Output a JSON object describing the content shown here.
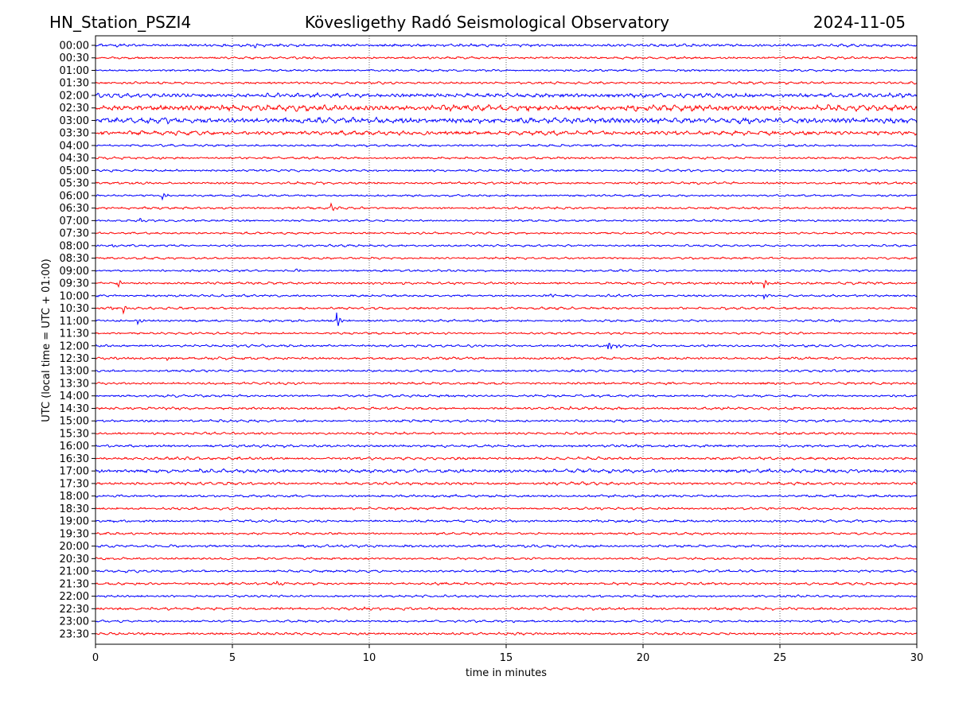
{
  "chart_data": {
    "type": "line",
    "subtype": "helicorder",
    "title_left": "HN_Station_PSZI4",
    "title_center": "Kövesligethy Radó Seismological Observatory",
    "title_right": "2024-11-05",
    "xlabel": "time in minutes",
    "ylabel": "UTC (local time = UTC + 01:00)",
    "xlim": [
      0,
      30
    ],
    "xticks": [
      0,
      5,
      10,
      15,
      20,
      25,
      30
    ],
    "grid": "vertical dotted at 5-minute ticks",
    "colors": [
      "#0000ff",
      "#ff0000"
    ],
    "rows": [
      "00:00",
      "00:30",
      "01:00",
      "01:30",
      "02:00",
      "02:30",
      "03:00",
      "03:30",
      "04:00",
      "04:30",
      "05:00",
      "05:30",
      "06:00",
      "06:30",
      "07:00",
      "07:30",
      "08:00",
      "08:30",
      "09:00",
      "09:30",
      "10:00",
      "10:30",
      "11:00",
      "11:30",
      "12:00",
      "12:30",
      "13:00",
      "13:30",
      "14:00",
      "14:30",
      "15:00",
      "15:30",
      "16:00",
      "16:30",
      "17:00",
      "17:30",
      "18:00",
      "18:30",
      "19:00",
      "19:30",
      "20:00",
      "20:30",
      "21:00",
      "21:30",
      "22:00",
      "22:30",
      "23:00",
      "23:30"
    ],
    "noise_level": [
      2,
      1.6,
      1.5,
      1.7,
      3,
      4,
      4,
      3,
      1.6,
      1.6,
      1.6,
      1.6,
      1.5,
      1.6,
      1.5,
      1.5,
      1.5,
      1.5,
      1.5,
      1.7,
      1.6,
      1.7,
      1.6,
      1.5,
      1.7,
      1.8,
      1.6,
      1.7,
      1.7,
      1.8,
      1.7,
      1.7,
      1.8,
      2,
      2.6,
      2,
      1.7,
      1.7,
      1.7,
      1.6,
      1.8,
      1.6,
      1.7,
      1.8,
      1.6,
      1.9,
      1.6,
      1.7
    ],
    "events": [
      {
        "row": 0,
        "minute": 5.8,
        "amp": 4
      },
      {
        "row": 10,
        "minute": 15.0,
        "amp": 3
      },
      {
        "row": 11,
        "minute": 28.5,
        "amp": 3
      },
      {
        "row": 12,
        "minute": 2.4,
        "amp": 7
      },
      {
        "row": 13,
        "minute": 8.6,
        "amp": 6
      },
      {
        "row": 14,
        "minute": 1.6,
        "amp": 4
      },
      {
        "row": 16,
        "minute": 0.6,
        "amp": 3
      },
      {
        "row": 18,
        "minute": 7.3,
        "amp": 3
      },
      {
        "row": 19,
        "minute": 0.8,
        "amp": 7
      },
      {
        "row": 19,
        "minute": 23.9,
        "amp": 4
      },
      {
        "row": 19,
        "minute": 24.4,
        "amp": 8
      },
      {
        "row": 20,
        "minute": 16.6,
        "amp": 4
      },
      {
        "row": 20,
        "minute": 24.4,
        "amp": 5
      },
      {
        "row": 21,
        "minute": 0.5,
        "amp": 4
      },
      {
        "row": 21,
        "minute": 1.0,
        "amp": 7
      },
      {
        "row": 22,
        "minute": 1.5,
        "amp": 6
      },
      {
        "row": 22,
        "minute": 8.8,
        "amp": 13
      },
      {
        "row": 24,
        "minute": 18.7,
        "amp": 9
      },
      {
        "row": 24,
        "minute": 19.0,
        "amp": 5
      },
      {
        "row": 25,
        "minute": 2.6,
        "amp": 3
      },
      {
        "row": 29,
        "minute": 17.3,
        "amp": 3
      },
      {
        "row": 43,
        "minute": 6.6,
        "amp": 3
      }
    ]
  }
}
